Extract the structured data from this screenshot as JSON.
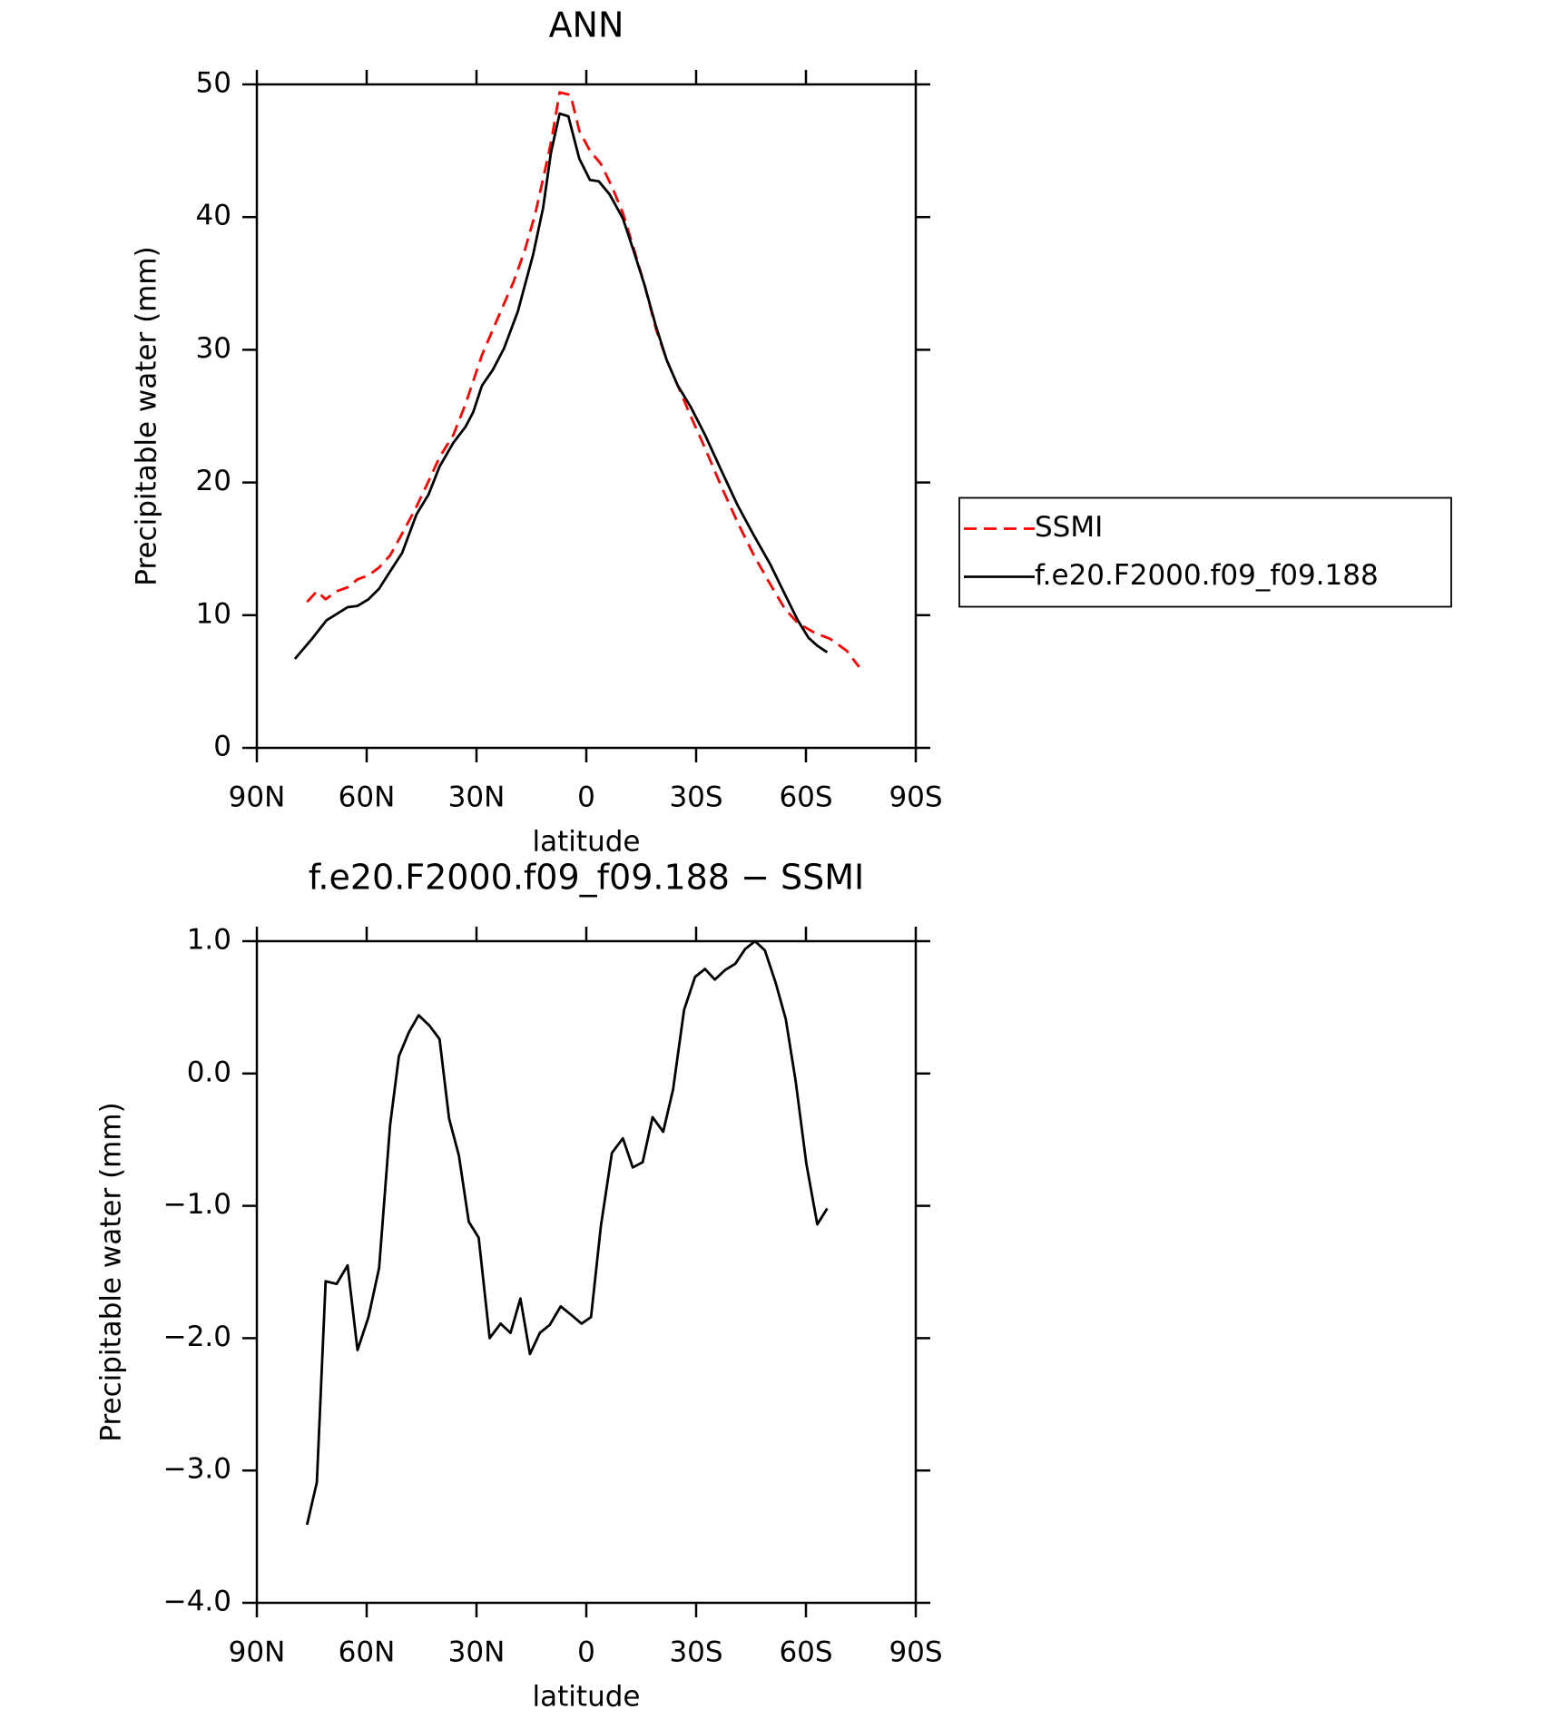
{
  "chart_data": [
    {
      "type": "line",
      "title": "ANN",
      "xlabel": "latitude",
      "ylabel": "Precipitable water (mm)",
      "xlim": [
        90,
        -90
      ],
      "xticks": [
        {
          "value": 90,
          "label": "90N"
        },
        {
          "value": 60,
          "label": "60N"
        },
        {
          "value": 30,
          "label": "30N"
        },
        0,
        {
          "value": -30,
          "label": "30S"
        },
        {
          "value": -60,
          "label": "60S"
        },
        {
          "value": -90,
          "label": "90S"
        }
      ],
      "ylim": [
        0,
        50
      ],
      "yticks": [
        0,
        10,
        20,
        30,
        40,
        50
      ],
      "legend": "right",
      "series": [
        {
          "name": "SSMI",
          "color": "#ff0000",
          "style": "dashed",
          "x": [
            76.3,
            73.6,
            71.2,
            68.2,
            65.2,
            62.5,
            59.5,
            56.6,
            53.6,
            50.6,
            46.7,
            43.1,
            40.1,
            36.3,
            33.0,
            28.5,
            24.0,
            19.9,
            16.9,
            13.9,
            10.9,
            9.4,
            7.3,
            4.3,
            1.9,
            -1.0,
            -4.0,
            -7.0,
            -10.0,
            -13.0,
            -16.0,
            -19.0,
            -22.0,
            -25.0,
            -28.5,
            -32.4,
            -36.9,
            -41.3,
            -45.8,
            -50.3,
            -54.2,
            -57.8,
            -62.2,
            -66.7,
            -71.2,
            -74.5
          ],
          "values": [
            11.0,
            11.8,
            11.2,
            11.8,
            12.1,
            12.7,
            13.0,
            13.6,
            14.5,
            16.0,
            18.0,
            20.1,
            21.9,
            23.6,
            25.9,
            29.6,
            32.5,
            35.1,
            37.4,
            40.3,
            44.0,
            46.0,
            49.4,
            49.2,
            46.5,
            45.0,
            44.0,
            42.3,
            40.3,
            37.6,
            34.8,
            31.6,
            29.2,
            27.3,
            25.0,
            22.6,
            19.7,
            17.0,
            14.5,
            12.3,
            10.5,
            9.4,
            8.7,
            8.2,
            7.3,
            6.1
          ]
        },
        {
          "name": "f.e20.F2000.f09_f09.188",
          "color": "#000000",
          "style": "solid",
          "x": [
            79.6,
            75.0,
            71.0,
            65.2,
            62.5,
            59.5,
            56.6,
            53.6,
            50.3,
            46.4,
            43.1,
            40.1,
            36.3,
            33.0,
            30.9,
            28.5,
            25.5,
            22.5,
            18.7,
            14.5,
            11.8,
            9.7,
            7.3,
            4.9,
            1.9,
            -1.0,
            -3.4,
            -6.4,
            -10.0,
            -13.0,
            -16.0,
            -19.0,
            -22.0,
            -25.0,
            -28.5,
            -32.4,
            -36.9,
            -41.3,
            -45.8,
            -50.3,
            -54.2,
            -57.8,
            -60.7,
            -63.1,
            -65.8
          ],
          "values": [
            6.7,
            8.2,
            9.6,
            10.6,
            10.7,
            11.2,
            12.0,
            13.3,
            14.7,
            17.6,
            19.1,
            21.2,
            23.0,
            24.2,
            25.3,
            27.3,
            28.5,
            30.1,
            32.9,
            37.2,
            40.7,
            44.8,
            47.8,
            47.6,
            44.4,
            42.8,
            42.7,
            41.7,
            39.9,
            37.4,
            34.8,
            31.8,
            29.2,
            27.3,
            25.7,
            23.6,
            20.9,
            18.3,
            16.0,
            13.8,
            11.6,
            9.6,
            8.3,
            7.7,
            7.2
          ]
        }
      ]
    },
    {
      "type": "line",
      "title": "f.e20.F2000.f09_f09.188 − SSMI",
      "xlabel": "latitude",
      "ylabel": "Precipitable water (mm)",
      "xlim": [
        90,
        -90
      ],
      "xticks": [
        {
          "value": 90,
          "label": "90N"
        },
        {
          "value": 60,
          "label": "60N"
        },
        {
          "value": 30,
          "label": "30N"
        },
        0,
        {
          "value": -30,
          "label": "30S"
        },
        {
          "value": -60,
          "label": "60S"
        },
        {
          "value": -90,
          "label": "90S"
        }
      ],
      "ylim": [
        -4,
        1
      ],
      "yticks": [
        {
          "value": -4,
          "label": "−4.0"
        },
        {
          "value": -3,
          "label": "−3.0"
        },
        {
          "value": -2,
          "label": "−2.0"
        },
        {
          "value": -1,
          "label": "−1.0"
        },
        {
          "value": 0,
          "label": "0.0"
        },
        {
          "value": 1,
          "label": "1.0"
        }
      ],
      "series": [
        {
          "color": "#000000",
          "style": "solid",
          "x": [
            76.3,
            73.6,
            71.2,
            68.2,
            65.2,
            62.5,
            59.5,
            56.6,
            53.6,
            51.2,
            48.5,
            45.8,
            42.8,
            40.1,
            37.5,
            34.8,
            32.1,
            29.4,
            26.4,
            23.4,
            20.7,
            18.0,
            15.4,
            12.7,
            10.0,
            7.0,
            4.3,
            1.3,
            -1.3,
            -4.0,
            -7.0,
            -10.0,
            -12.7,
            -15.4,
            -18.1,
            -21.0,
            -23.7,
            -26.7,
            -29.7,
            -32.4,
            -35.1,
            -37.8,
            -40.7,
            -43.4,
            -46.1,
            -48.8,
            -51.8,
            -54.5,
            -57.2,
            -60.1,
            -63.1,
            -65.8
          ],
          "values": [
            -3.41,
            -3.09,
            -1.57,
            -1.59,
            -1.45,
            -2.09,
            -1.84,
            -1.47,
            -0.39,
            0.13,
            0.31,
            0.44,
            0.36,
            0.26,
            -0.34,
            -0.62,
            -1.12,
            -1.24,
            -2.0,
            -1.89,
            -1.96,
            -1.7,
            -2.12,
            -1.96,
            -1.9,
            -1.76,
            -1.82,
            -1.89,
            -1.84,
            -1.15,
            -0.6,
            -0.49,
            -0.71,
            -0.67,
            -0.33,
            -0.44,
            -0.12,
            0.48,
            0.73,
            0.79,
            0.71,
            0.78,
            0.83,
            0.94,
            1.0,
            0.93,
            0.68,
            0.41,
            -0.06,
            -0.68,
            -1.14,
            -1.02
          ]
        }
      ]
    }
  ]
}
